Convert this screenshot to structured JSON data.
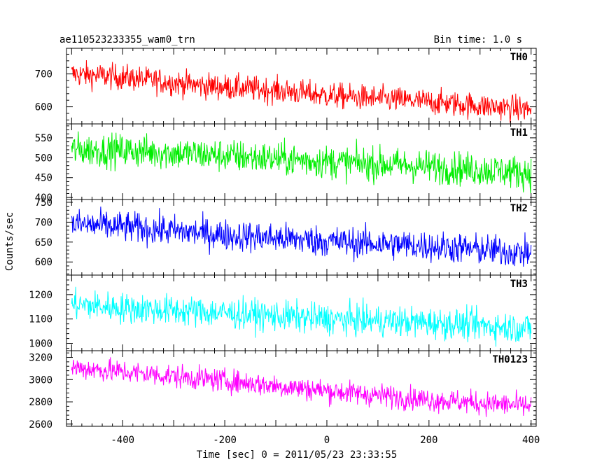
{
  "chart_data": {
    "type": "line",
    "title_left": "ae110523233355_wam0_trn",
    "title_right": "Bin time: 1.0 s",
    "xlabel": "Time [sec] 0 = 2011/05/23 23:33:55",
    "ylabel": "Counts/sec",
    "xlim": [
      -510,
      410
    ],
    "x_ticks": [
      -400,
      -200,
      0,
      200,
      400
    ],
    "grid": false,
    "panels": [
      {
        "name": "TH0",
        "color": "#ff0000",
        "ylim": [
          548,
          778
        ],
        "y_ticks": [
          600,
          700
        ],
        "trend": [
          [
            -500,
            700
          ],
          [
            -400,
            690
          ],
          [
            -250,
            665
          ],
          [
            -100,
            650
          ],
          [
            0,
            635
          ],
          [
            100,
            625
          ],
          [
            200,
            615
          ],
          [
            300,
            603
          ],
          [
            400,
            592
          ]
        ],
        "noise": 28
      },
      {
        "name": "TH1",
        "color": "#00ee00",
        "ylim": [
          395,
          585
        ],
        "y_ticks": [
          400,
          450,
          500,
          550
        ],
        "trend": [
          [
            -500,
            520
          ],
          [
            -400,
            518
          ],
          [
            -200,
            505
          ],
          [
            0,
            490
          ],
          [
            200,
            478
          ],
          [
            400,
            462
          ]
        ],
        "noise": 30
      },
      {
        "name": "TH2",
        "color": "#0000ff",
        "ylim": [
          567,
          757
        ],
        "y_ticks": [
          600,
          650,
          700,
          750
        ],
        "trend": [
          [
            -500,
            695
          ],
          [
            -400,
            688
          ],
          [
            -200,
            668
          ],
          [
            0,
            652
          ],
          [
            200,
            640
          ],
          [
            400,
            622
          ]
        ],
        "noise": 28
      },
      {
        "name": "TH3",
        "color": "#00ffff",
        "ylim": [
          970,
          1280
        ],
        "y_ticks": [
          1000,
          1100,
          1200
        ],
        "trend": [
          [
            -500,
            1160
          ],
          [
            -400,
            1145
          ],
          [
            -200,
            1125
          ],
          [
            0,
            1100
          ],
          [
            200,
            1085
          ],
          [
            400,
            1062
          ]
        ],
        "noise": 45
      },
      {
        "name": "TH0123",
        "color": "#ff00ff",
        "ylim": [
          2580,
          3260
        ],
        "y_ticks": [
          2600,
          2800,
          3000,
          3200
        ],
        "trend": [
          [
            -500,
            3110
          ],
          [
            -400,
            3070
          ],
          [
            -200,
            2990
          ],
          [
            0,
            2900
          ],
          [
            200,
            2820
          ],
          [
            400,
            2760
          ]
        ],
        "noise": 75
      }
    ]
  }
}
